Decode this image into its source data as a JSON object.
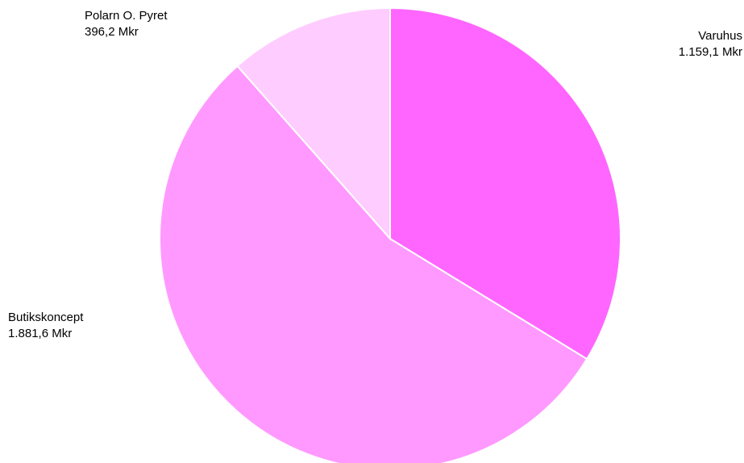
{
  "chart_data": {
    "type": "pie",
    "series": [
      {
        "name": "",
        "slices": [
          {
            "label": "Varuhus",
            "value_text": "1.159,1 Mkr",
            "value": 1159.1,
            "color": "#ff66ff"
          },
          {
            "label": "Butikskoncept",
            "value_text": "1.881,6 Mkr",
            "value": 1881.6,
            "color": "#ff99ff"
          },
          {
            "label": "Polarn O. Pyret",
            "value_text": "396,2 Mkr",
            "value": 396.2,
            "color": "#ffccff"
          }
        ]
      }
    ],
    "legend": "none",
    "start_angle": "12 o'clock",
    "direction": "clockwise"
  }
}
